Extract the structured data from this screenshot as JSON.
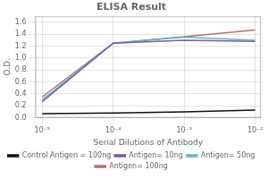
{
  "chart_data": {
    "type": "line",
    "title": "ELISA Result",
    "xlabel": "Serial Dilutions of Antibody",
    "ylabel": "O.D.",
    "x": [
      0.01,
      0.001,
      0.0001,
      1e-05
    ],
    "series": [
      {
        "name": "Control Antigen = 100ng",
        "color": "#111111",
        "values": [
          0.13,
          0.1,
          0.08,
          0.07
        ]
      },
      {
        "name": "Antigen= 10ng",
        "color": "#7b5ea7",
        "values": [
          1.28,
          1.3,
          1.25,
          0.27
        ]
      },
      {
        "name": "Antigen= 50ng",
        "color": "#5bb8d4",
        "values": [
          1.3,
          1.35,
          1.25,
          0.3
        ]
      },
      {
        "name": "Antigen= 100ng",
        "color": "#b5736a",
        "values": [
          1.47,
          1.36,
          1.25,
          0.35
        ]
      }
    ],
    "log": "x",
    "xlim": [
      8e-06,
      0.012
    ],
    "xticks": [
      {
        "value": 0.01,
        "label": "10⁻²"
      },
      {
        "value": 0.001,
        "label": "10⁻³"
      },
      {
        "value": 0.0001,
        "label": "10⁻⁴"
      },
      {
        "value": 1e-05,
        "label": "10⁻⁵"
      }
    ],
    "ylim": [
      0,
      1.7
    ],
    "yticks": [
      {
        "value": 0,
        "label": "0.0"
      },
      0.2,
      0.4,
      0.6,
      0.8,
      {
        "value": 1,
        "label": "1.0"
      },
      1.2,
      1.4,
      1.6
    ],
    "grid": true,
    "legend": "bottom"
  }
}
